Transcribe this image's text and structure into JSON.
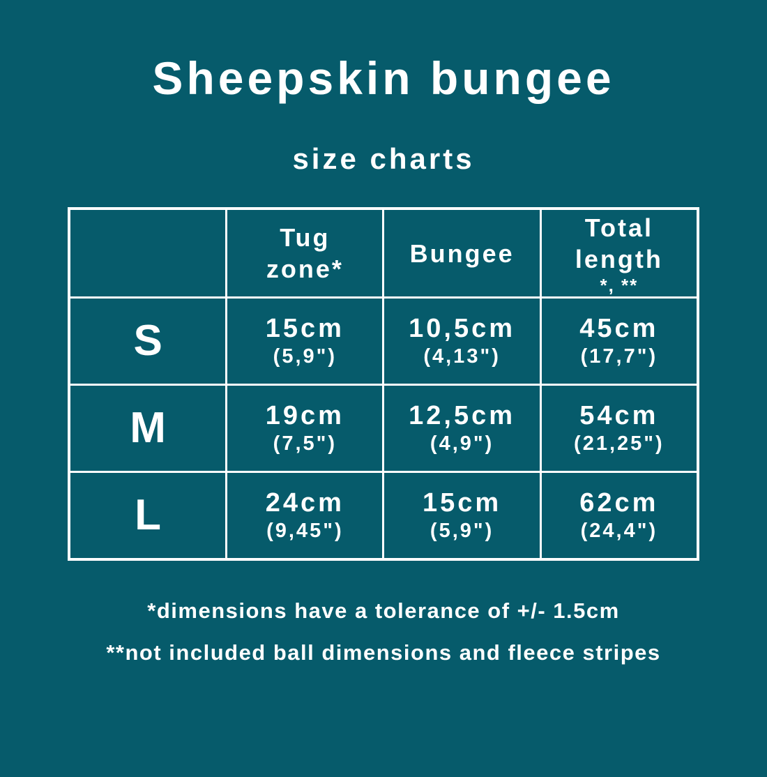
{
  "colors": {
    "background": "#065B6B",
    "text": "#FFFFFF",
    "table_border": "#FFFFFF"
  },
  "chart_data": {
    "type": "table",
    "title": "Sheepskin bungee",
    "subtitle": "size charts",
    "columns": [
      {
        "label": ""
      },
      {
        "label": "Tug\nzone*"
      },
      {
        "label": "Bungee"
      },
      {
        "label": "Total\nlength",
        "note": "*, **"
      }
    ],
    "rows": [
      {
        "size": "S",
        "tug_cm": "15cm",
        "tug_in": "(5,9\")",
        "bungee_cm": "10,5cm",
        "bungee_in": "(4,13\")",
        "total_cm": "45cm",
        "total_in": "(17,7\")"
      },
      {
        "size": "M",
        "tug_cm": "19cm",
        "tug_in": "(7,5\")",
        "bungee_cm": "12,5cm",
        "bungee_in": "(4,9\")",
        "total_cm": "54cm",
        "total_in": "(21,25\")"
      },
      {
        "size": "L",
        "tug_cm": "24cm",
        "tug_in": "(9,45\")",
        "bungee_cm": "15cm",
        "bungee_in": "(5,9\")",
        "total_cm": "62cm",
        "total_in": "(24,4\")"
      }
    ],
    "footnotes": [
      "*dimensions have a tolerance of +/- 1.5cm",
      "**not included ball dimensions and fleece stripes"
    ],
    "layout_hints": {
      "legend": "none",
      "grid": "white cell borders on teal background",
      "header_row": "top"
    }
  }
}
